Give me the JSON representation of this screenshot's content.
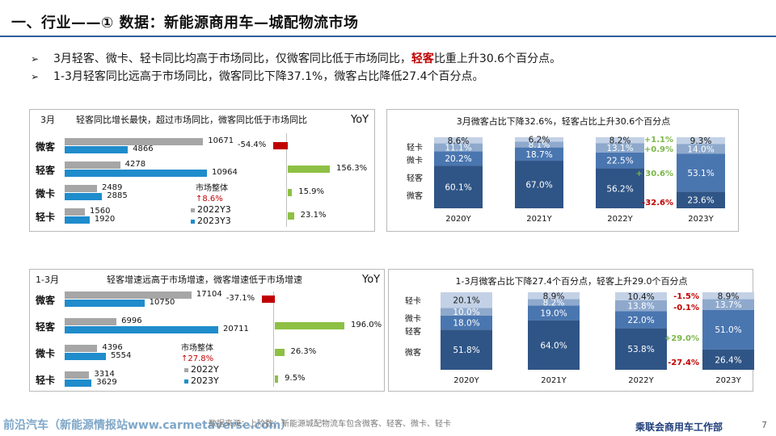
{
  "header": {
    "title": "一、行业——① 数据：新能源商用车—城配物流市场"
  },
  "bullets": {
    "mark": "➢",
    "b1_pre": "3月轻客、微卡、轻卡同比均高于市场同比，仅微客同比低于市场同比，",
    "b1_hl": "轻客",
    "b1_post": "比重上升30.6个百分点。",
    "b2": "1-3月轻客同比远高于市场同比，微客同比下降37.1%，微客占比降低27.4个百分点。"
  },
  "colors": {
    "prev": "#a6a6a6",
    "curr": "#1f8ccc",
    "positive": "#8dc044",
    "negative": "#c00000",
    "stack_micro_bus": "#2f5586",
    "stack_light_bus": "#4a76b0",
    "stack_micro_truck": "#8ea9cc",
    "stack_light_truck": "#c3d1e6"
  },
  "chart_data": [
    {
      "id": "march_bar",
      "type": "bar",
      "period_label": "3月",
      "title": "轻客同比增长最快，超过市场同比，微客同比低于市场同比",
      "yoy_label": "YoY",
      "categories": [
        "微客",
        "轻客",
        "微卡",
        "轻卡"
      ],
      "series": [
        {
          "name": "2022Y3",
          "values": [
            10671,
            4278,
            2489,
            1560
          ]
        },
        {
          "name": "2023Y3",
          "values": [
            4866,
            10964,
            2885,
            1920
          ]
        }
      ],
      "yoy": [
        -54.4,
        156.3,
        15.9,
        23.1
      ],
      "yoy_labels": [
        "-54.4%",
        "156.3%",
        "15.9%",
        "23.1%"
      ],
      "market_label": "市场整体",
      "market_yoy": "↑8.6%"
    },
    {
      "id": "ytd_bar",
      "type": "bar",
      "period_label": "1-3月",
      "title": "轻客增速远高于市场增速，微客增速低于市场增速",
      "yoy_label": "YoY",
      "categories": [
        "微客",
        "轻客",
        "微卡",
        "轻卡"
      ],
      "series": [
        {
          "name": "2022Y",
          "values": [
            17104,
            6996,
            4396,
            3314
          ]
        },
        {
          "name": "2023Y",
          "values": [
            10750,
            20711,
            5554,
            3629
          ]
        }
      ],
      "yoy": [
        -37.1,
        196.0,
        26.3,
        9.5
      ],
      "yoy_labels": [
        "-37.1%",
        "196.0%",
        "26.3%",
        "9.5%"
      ],
      "market_label": "市场整体",
      "market_yoy": "↑27.8%"
    },
    {
      "id": "march_share",
      "type": "bar",
      "stacked": true,
      "title": "3月微客占比下降32.6%，轻客占比上升30.6个百分点",
      "categories": [
        "2020Y",
        "2021Y",
        "2022Y",
        "2023Y"
      ],
      "series": [
        {
          "name": "微客",
          "values": [
            60.1,
            67.0,
            56.2,
            23.6
          ]
        },
        {
          "name": "轻客",
          "values": [
            20.2,
            18.7,
            22.5,
            53.1
          ]
        },
        {
          "name": "微卡",
          "values": [
            11.1,
            8.1,
            13.1,
            14.0
          ]
        },
        {
          "name": "轻卡",
          "values": [
            8.6,
            6.2,
            8.2,
            9.3
          ]
        }
      ],
      "changes": [
        {
          "series": "轻卡",
          "label": "+1.1%"
        },
        {
          "series": "微卡",
          "label": "+0.9%"
        },
        {
          "series": "轻客",
          "label": "+ 30.6%"
        },
        {
          "series": "微客",
          "label": "-32.6%"
        }
      ]
    },
    {
      "id": "ytd_share",
      "type": "bar",
      "stacked": true,
      "title": "1-3月微客占比下降27.4个百分点，轻客上升29.0个百分点",
      "categories": [
        "2020Y",
        "2021Y",
        "2022Y",
        "2023Y"
      ],
      "series": [
        {
          "name": "微客",
          "values": [
            51.8,
            64.0,
            53.8,
            26.4
          ]
        },
        {
          "name": "轻客",
          "values": [
            18.0,
            19.0,
            22.0,
            51.0
          ]
        },
        {
          "name": "微卡",
          "values": [
            10.0,
            8.2,
            13.8,
            13.7
          ]
        },
        {
          "name": "轻卡",
          "values": [
            20.1,
            8.9,
            10.4,
            8.9
          ]
        }
      ],
      "changes": [
        {
          "series": "轻卡",
          "label": "-1.5%"
        },
        {
          "series": "微卡",
          "label": "-0.1%"
        },
        {
          "series": "轻客",
          "label": "+29.0%"
        },
        {
          "series": "微客",
          "label": "-27.4%"
        }
      ]
    }
  ],
  "footer": {
    "watermark": "前沿汽车（新能源情报站www.carmetaverse.com）",
    "source": "数据来源：上险数；新能源城配物流车包含微客、轻客、微卡、轻卡",
    "org": "乘联会商用车工作部",
    "page": "7"
  }
}
